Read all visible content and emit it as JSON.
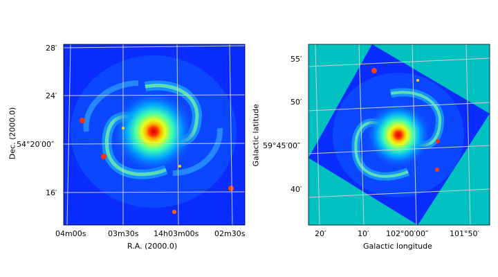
{
  "left_panel": {
    "x_axis_label": "R.A. (2000.0)",
    "y_axis_label": "Dec. (2000.0)",
    "x_ticks": [
      "04ᵐ⁰⁰ˢ",
      "03ᵐ³⁰ˢ",
      "14ʰ03ᵐ⁰⁰ˢ",
      "02ᵐ³⁰ˢ"
    ],
    "x_ticks_plain": [
      "04m00s",
      "03m30s",
      "14h03m00s",
      "02m30s"
    ],
    "y_ticks": [
      "28′",
      "24′",
      "54°20′00″",
      "16′"
    ]
  },
  "right_panel": {
    "x_axis_label": "Galactic longitude",
    "y_axis_label": "Galactic latitude",
    "x_ticks": [
      "20′",
      "10′",
      "102°00′00″",
      "101°50′"
    ],
    "y_ticks": [
      "55′",
      "50′",
      "59°45′00″",
      "40′"
    ]
  },
  "colors": {
    "background_field": "#0a2cff",
    "outside_fill": "#00c0c0",
    "core": "#d80000",
    "grid": "#cfcfcf"
  }
}
